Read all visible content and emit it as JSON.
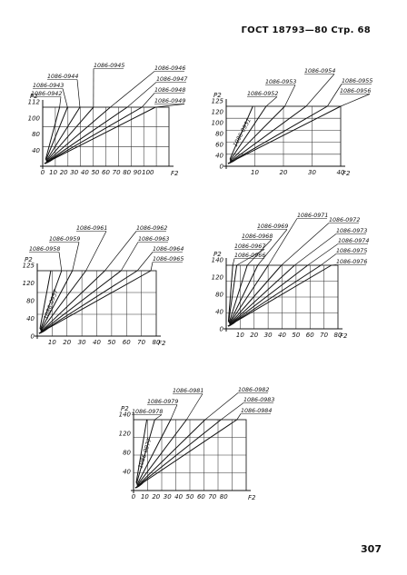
{
  "header": "ГОСТ 18793—80 Стр. 68",
  "page_number": "307",
  "chart_data": [
    {
      "type": "line",
      "ylabel": "P2",
      "xlabel": "F2",
      "xlim": [
        0,
        112
      ],
      "ylim": [
        0,
        112
      ],
      "x_ticks": [
        "0",
        "10",
        "20",
        "30",
        "40",
        "50",
        "60",
        "70",
        "80",
        "90",
        "100"
      ],
      "y_ticks": [
        "40",
        "80",
        "100",
        "112"
      ],
      "series": [
        {
          "name": "1086-0942",
          "endpoint": [
            15,
            112
          ]
        },
        {
          "name": "1086-0943",
          "endpoint": [
            22,
            112
          ]
        },
        {
          "name": "1086-0944",
          "endpoint": [
            33,
            112
          ]
        },
        {
          "name": "1086-0945",
          "endpoint": [
            45,
            112
          ]
        },
        {
          "name": "1086-0946",
          "endpoint": [
            60,
            112
          ]
        },
        {
          "name": "1086-0947",
          "endpoint": [
            75,
            112
          ]
        },
        {
          "name": "1086-0948",
          "endpoint": [
            88,
            112
          ]
        },
        {
          "name": "1086-0949",
          "endpoint": [
            100,
            112
          ]
        }
      ]
    },
    {
      "type": "line",
      "ylabel": "P2",
      "xlabel": "F2",
      "xlim": [
        0,
        43
      ],
      "ylim": [
        0,
        125
      ],
      "x_ticks": [
        "10",
        "20",
        "30",
        "40"
      ],
      "y_ticks": [
        "0",
        "40",
        "60",
        "80",
        "100",
        "120",
        "125"
      ],
      "series": [
        {
          "name": "1086-0951",
          "endpoint": [
            10,
            125
          ],
          "inline": true
        },
        {
          "name": "1086-0952",
          "endpoint": [
            15,
            125
          ]
        },
        {
          "name": "1086-0953",
          "endpoint": [
            22,
            125
          ]
        },
        {
          "name": "1086-0954",
          "endpoint": [
            30,
            125
          ]
        },
        {
          "name": "1086-0955",
          "endpoint": [
            38,
            125
          ]
        },
        {
          "name": "1086-0956",
          "endpoint": [
            43,
            125
          ]
        }
      ]
    },
    {
      "type": "line",
      "ylabel": "P2",
      "xlabel": "F2",
      "xlim": [
        0,
        88
      ],
      "ylim": [
        0,
        125
      ],
      "x_ticks": [
        "10",
        "20",
        "30",
        "40",
        "50",
        "60",
        "70",
        "80"
      ],
      "y_ticks": [
        "0",
        "40",
        "80",
        "120",
        "125"
      ],
      "series": [
        {
          "name": "1086-0957",
          "endpoint": [
            10,
            125
          ],
          "inline": true
        },
        {
          "name": "1086-0958",
          "endpoint": [
            18,
            125
          ]
        },
        {
          "name": "1086-0959",
          "endpoint": [
            26,
            125
          ]
        },
        {
          "name": "1086-0961",
          "endpoint": [
            36,
            125
          ]
        },
        {
          "name": "1086-0962",
          "endpoint": [
            50,
            125
          ]
        },
        {
          "name": "1086-0963",
          "endpoint": [
            62,
            125
          ]
        },
        {
          "name": "1086-0964",
          "endpoint": [
            74,
            125
          ]
        },
        {
          "name": "1086-0965",
          "endpoint": [
            84,
            125
          ]
        }
      ]
    },
    {
      "type": "line",
      "ylabel": "P2",
      "xlabel": "F2",
      "xlim": [
        0,
        85
      ],
      "ylim": [
        0,
        140
      ],
      "x_ticks": [
        "10",
        "20",
        "30",
        "40",
        "50",
        "60",
        "70",
        "80"
      ],
      "y_ticks": [
        "0",
        "40",
        "80",
        "120",
        "140"
      ],
      "series": [
        {
          "name": "1086-0966",
          "endpoint": [
            5,
            140
          ]
        },
        {
          "name": "1086-0967",
          "endpoint": [
            8,
            140
          ]
        },
        {
          "name": "1086-0968",
          "endpoint": [
            16,
            140
          ]
        },
        {
          "name": "1086-0969",
          "endpoint": [
            24,
            140
          ]
        },
        {
          "name": "1086-0971",
          "endpoint": [
            32,
            140
          ]
        },
        {
          "name": "1086-0972",
          "endpoint": [
            42,
            140
          ]
        },
        {
          "name": "1086-0973",
          "endpoint": [
            52,
            140
          ]
        },
        {
          "name": "1086-0974",
          "endpoint": [
            62,
            140
          ]
        },
        {
          "name": "1086-0975",
          "endpoint": [
            72,
            140
          ]
        },
        {
          "name": "1086-0976",
          "endpoint": [
            80,
            140
          ]
        }
      ]
    },
    {
      "type": "line",
      "ylabel": "P2",
      "xlabel": "F2",
      "xlim": [
        0,
        85
      ],
      "ylim": [
        0,
        140
      ],
      "x_ticks": [
        "0",
        "10",
        "20",
        "30",
        "40",
        "50",
        "60",
        "70",
        "80"
      ],
      "y_ticks": [
        "40",
        "80",
        "120",
        "140"
      ],
      "series": [
        {
          "name": "1086-0977",
          "endpoint": [
            10,
            140
          ],
          "inline": true
        },
        {
          "name": "1086-0978",
          "endpoint": [
            16,
            140
          ]
        },
        {
          "name": "1086-0979",
          "endpoint": [
            28,
            140
          ]
        },
        {
          "name": "1086-0981",
          "endpoint": [
            40,
            140
          ]
        },
        {
          "name": "1086-0982",
          "endpoint": [
            54,
            140
          ]
        },
        {
          "name": "1086-0983",
          "endpoint": [
            66,
            140
          ]
        },
        {
          "name": "1086-0984",
          "endpoint": [
            78,
            140
          ]
        }
      ]
    }
  ]
}
